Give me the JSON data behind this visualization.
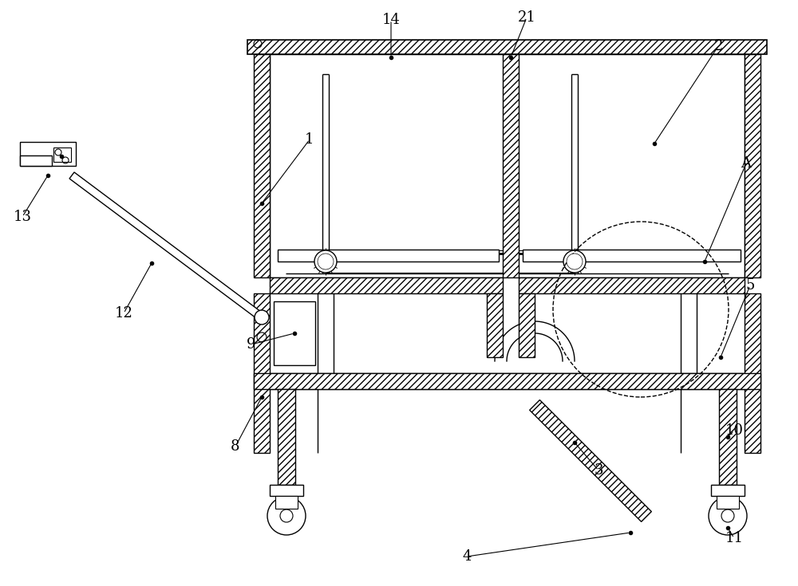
{
  "bg_color": "#ffffff",
  "line_color": "#000000",
  "figsize": [
    10.0,
    7.35
  ],
  "dpi": 100
}
